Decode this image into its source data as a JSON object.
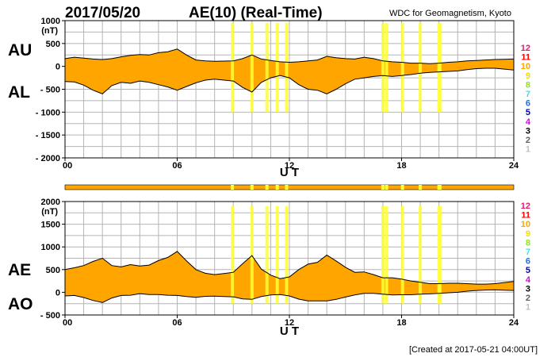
{
  "header": {
    "date": "2017/05/20",
    "title": "AE(10) (Real-Time)",
    "source": "WDC for Geomagnetism, Kyoto"
  },
  "footer": {
    "created": "[Created at 2017-05-21 04:00UT]"
  },
  "colors": {
    "fill": "#FFA500",
    "highlight": "#FFFF33",
    "grid": "#B4B4B4",
    "axis": "#000000"
  },
  "station_legend": [
    {
      "label": "12",
      "color": "#E0206A"
    },
    {
      "label": "11",
      "color": "#FF0000"
    },
    {
      "label": "10",
      "color": "#FFA500"
    },
    {
      "label": "9",
      "color": "#F0E000"
    },
    {
      "label": "8",
      "color": "#90E020"
    },
    {
      "label": "7",
      "color": "#40E0E0"
    },
    {
      "label": "6",
      "color": "#1E6CF0"
    },
    {
      "label": "5",
      "color": "#0000C0"
    },
    {
      "label": "4",
      "color": "#E000E0"
    },
    {
      "label": "3",
      "color": "#000000"
    },
    {
      "label": "2",
      "color": "#606060"
    },
    {
      "label": "1",
      "color": "#C0C0C0"
    }
  ],
  "highlight_hours": [
    8.95,
    10.0,
    10.8,
    11.35,
    11.85,
    17.0,
    17.2,
    18.05,
    19.0,
    20.0,
    20.05
  ],
  "chart_data": [
    {
      "type": "area",
      "name": "AU/AL",
      "labels": {
        "upper": "AU",
        "lower": "AL"
      },
      "unit": "(nT)",
      "xlabel": "U T",
      "xlim": [
        0,
        24
      ],
      "xticks": [
        0,
        6,
        12,
        18,
        24
      ],
      "xtick_labels": [
        "00",
        "06",
        "12",
        "18",
        "24"
      ],
      "ylim": [
        -2000,
        1000
      ],
      "yticks": [
        1000,
        500,
        0,
        -500,
        -1000,
        -1500,
        -2000
      ],
      "ytick_labels": [
        "1000",
        "500",
        "0",
        "- 500",
        "- 1000",
        "- 1500",
        "- 2000"
      ],
      "grid": true,
      "x": [
        0,
        0.5,
        1,
        1.5,
        2,
        2.5,
        3,
        3.5,
        4,
        4.5,
        5,
        5.5,
        6,
        6.5,
        7,
        7.5,
        8,
        8.5,
        9,
        9.5,
        10,
        10.5,
        11,
        11.5,
        12,
        12.5,
        13,
        13.5,
        14,
        14.5,
        15,
        15.5,
        16,
        16.5,
        17,
        17.5,
        18,
        18.5,
        19,
        19.5,
        20,
        20.5,
        21,
        21.5,
        22,
        22.5,
        23,
        23.5,
        24
      ],
      "series": [
        {
          "name": "AU",
          "values": [
            170,
            200,
            180,
            160,
            150,
            170,
            210,
            240,
            260,
            250,
            300,
            320,
            380,
            250,
            140,
            120,
            110,
            115,
            120,
            170,
            250,
            160,
            130,
            100,
            90,
            100,
            120,
            140,
            220,
            190,
            170,
            160,
            200,
            170,
            120,
            100,
            90,
            70,
            70,
            60,
            70,
            90,
            100,
            120,
            130,
            140,
            150,
            155,
            160
          ]
        },
        {
          "name": "AL",
          "values": [
            -330,
            -340,
            -410,
            -520,
            -600,
            -420,
            -350,
            -370,
            -320,
            -350,
            -400,
            -450,
            -520,
            -440,
            -360,
            -300,
            -280,
            -300,
            -320,
            -460,
            -560,
            -350,
            -250,
            -200,
            -250,
            -400,
            -500,
            -520,
            -600,
            -500,
            -380,
            -280,
            -250,
            -220,
            -200,
            -220,
            -200,
            -180,
            -150,
            -130,
            -120,
            -110,
            -100,
            -70,
            -50,
            -40,
            -40,
            -60,
            -80
          ]
        }
      ]
    },
    {
      "type": "area",
      "name": "AE/AO",
      "labels": {
        "upper": "AE",
        "lower": "AO"
      },
      "unit": "(nT)",
      "xlabel": "U T",
      "xlim": [
        0,
        24
      ],
      "xticks": [
        0,
        6,
        12,
        18,
        24
      ],
      "xtick_labels": [
        "00",
        "06",
        "12",
        "18",
        "24"
      ],
      "ylim": [
        -500,
        2000
      ],
      "yticks": [
        2000,
        1500,
        1000,
        500,
        0,
        -500
      ],
      "ytick_labels": [
        "2000",
        "1500",
        "1000",
        "500",
        "0",
        "- 500"
      ],
      "grid": true,
      "x": [
        0,
        0.5,
        1,
        1.5,
        2,
        2.5,
        3,
        3.5,
        4,
        4.5,
        5,
        5.5,
        6,
        6.5,
        7,
        7.5,
        8,
        8.5,
        9,
        9.5,
        10,
        10.5,
        11,
        11.5,
        12,
        12.5,
        13,
        13.5,
        14,
        14.5,
        15,
        15.5,
        16,
        16.5,
        17,
        17.5,
        18,
        18.5,
        19,
        19.5,
        20,
        20.5,
        21,
        21.5,
        22,
        22.5,
        23,
        23.5,
        24
      ],
      "series": [
        {
          "name": "AE",
          "values": [
            500,
            540,
            590,
            680,
            750,
            590,
            560,
            610,
            580,
            600,
            700,
            770,
            900,
            690,
            500,
            420,
            390,
            415,
            440,
            630,
            810,
            510,
            380,
            300,
            340,
            500,
            620,
            660,
            820,
            690,
            550,
            440,
            450,
            390,
            320,
            320,
            290,
            250,
            220,
            190,
            190,
            200,
            200,
            190,
            180,
            180,
            190,
            215,
            240
          ]
        },
        {
          "name": "AO",
          "values": [
            -80,
            -70,
            -115,
            -180,
            -225,
            -125,
            -70,
            -65,
            -30,
            -50,
            -50,
            -65,
            -70,
            -95,
            -110,
            -90,
            -85,
            -92,
            -100,
            -145,
            -155,
            -95,
            -60,
            -50,
            -80,
            -150,
            -190,
            -190,
            -190,
            -155,
            -105,
            -60,
            -25,
            -25,
            -40,
            -60,
            -55,
            -55,
            -40,
            -35,
            -25,
            -10,
            0,
            25,
            40,
            50,
            55,
            48,
            40
          ]
        }
      ]
    }
  ]
}
